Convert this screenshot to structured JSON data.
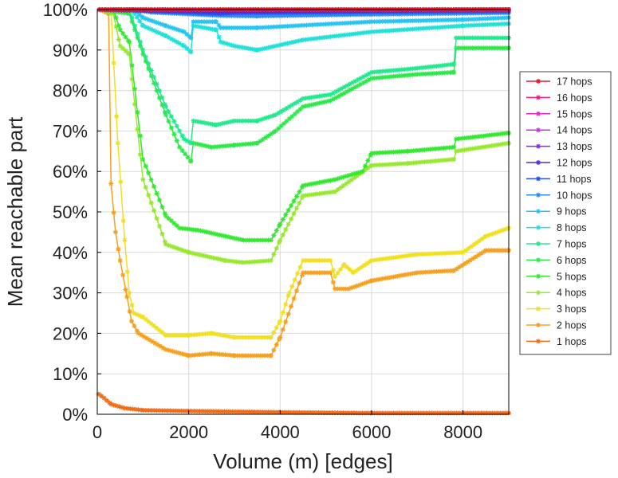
{
  "chart_data": {
    "type": "line",
    "title": "",
    "xlabel": "Volume (m) [edges]",
    "ylabel": "Mean reachable part",
    "xlim": [
      0,
      9000
    ],
    "ylim": [
      0,
      100
    ],
    "x_ticks": [
      "0",
      "2000",
      "4000",
      "6000",
      "8000"
    ],
    "y_ticks": [
      "0%",
      "10%",
      "20%",
      "30%",
      "40%",
      "50%",
      "60%",
      "70%",
      "80%",
      "90%",
      "100%"
    ],
    "grid": true,
    "legend_position": "right",
    "series": [
      {
        "name": "17 hops",
        "color": "#e8182e",
        "points": [
          [
            50,
            100
          ],
          [
            9000,
            100
          ]
        ]
      },
      {
        "name": "16 hops",
        "color": "#ee1c7a",
        "points": [
          [
            50,
            100
          ],
          [
            9000,
            100
          ]
        ]
      },
      {
        "name": "15 hops",
        "color": "#e825c0",
        "points": [
          [
            50,
            100
          ],
          [
            9000,
            100
          ]
        ]
      },
      {
        "name": "14 hops",
        "color": "#cf2ee8",
        "points": [
          [
            50,
            100
          ],
          [
            9000,
            100
          ]
        ]
      },
      {
        "name": "13 hops",
        "color": "#8c28e8",
        "points": [
          [
            50,
            100
          ],
          [
            9000,
            100
          ]
        ]
      },
      {
        "name": "12 hops",
        "color": "#4a2ce8",
        "points": [
          [
            50,
            100
          ],
          [
            3000,
            99.5
          ],
          [
            9000,
            100
          ]
        ]
      },
      {
        "name": "11 hops",
        "color": "#2450ee",
        "points": [
          [
            50,
            100
          ],
          [
            1500,
            99.5
          ],
          [
            2700,
            99
          ],
          [
            3000,
            99.2
          ],
          [
            6000,
            99.4
          ],
          [
            9000,
            99.6
          ]
        ]
      },
      {
        "name": "10 hops",
        "color": "#2a8cf0",
        "points": [
          [
            50,
            100
          ],
          [
            800,
            100
          ],
          [
            1200,
            99.3
          ],
          [
            2700,
            98.5
          ],
          [
            3500,
            98.4
          ],
          [
            6000,
            98.8
          ],
          [
            9000,
            99.2
          ]
        ]
      },
      {
        "name": "9 hops",
        "color": "#26c4f2",
        "points": [
          [
            50,
            100
          ],
          [
            800,
            100
          ],
          [
            1000,
            98
          ],
          [
            1500,
            96
          ],
          [
            1900,
            94.5
          ],
          [
            2050,
            93
          ],
          [
            2100,
            97
          ],
          [
            2600,
            97
          ],
          [
            2700,
            95.5
          ],
          [
            3500,
            95.5
          ],
          [
            6000,
            97
          ],
          [
            8000,
            97.5
          ],
          [
            9000,
            98
          ]
        ]
      },
      {
        "name": "8 hops",
        "color": "#20e0d8",
        "points": [
          [
            50,
            100
          ],
          [
            750,
            100
          ],
          [
            1000,
            96
          ],
          [
            1500,
            93.5
          ],
          [
            1900,
            91
          ],
          [
            2050,
            89.5
          ],
          [
            2100,
            96
          ],
          [
            2600,
            95
          ],
          [
            2700,
            92
          ],
          [
            3000,
            91
          ],
          [
            3500,
            90
          ],
          [
            4500,
            92.5
          ],
          [
            6000,
            94.5
          ],
          [
            8000,
            96
          ],
          [
            9000,
            96.5
          ]
        ]
      },
      {
        "name": "7 hops",
        "color": "#22e88e",
        "points": [
          [
            50,
            100
          ],
          [
            700,
            100
          ],
          [
            1000,
            90
          ],
          [
            1500,
            76
          ],
          [
            1900,
            68
          ],
          [
            2050,
            67
          ],
          [
            2100,
            72.5
          ],
          [
            2600,
            71.5
          ],
          [
            3000,
            72.5
          ],
          [
            3500,
            72.5
          ],
          [
            3900,
            74
          ],
          [
            4500,
            78
          ],
          [
            5100,
            79
          ],
          [
            6000,
            84.5
          ],
          [
            7000,
            85.5
          ],
          [
            7800,
            86.5
          ],
          [
            7850,
            93
          ],
          [
            9000,
            93
          ]
        ]
      },
      {
        "name": "6 hops",
        "color": "#2ee84a",
        "points": [
          [
            50,
            100
          ],
          [
            700,
            99
          ],
          [
            1000,
            89
          ],
          [
            1500,
            74
          ],
          [
            1800,
            66
          ],
          [
            2050,
            62.5
          ],
          [
            2100,
            67
          ],
          [
            2500,
            66
          ],
          [
            3000,
            66.5
          ],
          [
            3500,
            67
          ],
          [
            3900,
            70
          ],
          [
            4500,
            76
          ],
          [
            5100,
            77.5
          ],
          [
            6000,
            83
          ],
          [
            7000,
            84
          ],
          [
            7800,
            84.5
          ],
          [
            7850,
            90.5
          ],
          [
            9000,
            90.5
          ]
        ]
      },
      {
        "name": "5 hops",
        "color": "#34e830",
        "points": [
          [
            50,
            100
          ],
          [
            350,
            100
          ],
          [
            500,
            95
          ],
          [
            700,
            92
          ],
          [
            1000,
            63
          ],
          [
            1500,
            49
          ],
          [
            1800,
            46
          ],
          [
            2200,
            45.5
          ],
          [
            2800,
            44
          ],
          [
            3200,
            43
          ],
          [
            3800,
            43
          ],
          [
            4000,
            47
          ],
          [
            4500,
            56.5
          ],
          [
            5200,
            58
          ],
          [
            5800,
            60
          ],
          [
            6000,
            64.5
          ],
          [
            6800,
            65
          ],
          [
            7800,
            66
          ],
          [
            7850,
            68
          ],
          [
            9000,
            69.5
          ]
        ]
      },
      {
        "name": "4 hops",
        "color": "#98e832",
        "points": [
          [
            50,
            100
          ],
          [
            350,
            99
          ],
          [
            500,
            91
          ],
          [
            700,
            89
          ],
          [
            1000,
            58
          ],
          [
            1500,
            42
          ],
          [
            2000,
            40
          ],
          [
            2800,
            38
          ],
          [
            3200,
            37.5
          ],
          [
            3800,
            38
          ],
          [
            4000,
            43
          ],
          [
            4500,
            54
          ],
          [
            5200,
            55
          ],
          [
            6000,
            61.5
          ],
          [
            6800,
            62
          ],
          [
            7800,
            63
          ],
          [
            7850,
            65
          ],
          [
            9000,
            67
          ]
        ]
      },
      {
        "name": "3 hops",
        "color": "#f0e020",
        "points": [
          [
            50,
            100
          ],
          [
            300,
            100
          ],
          [
            450,
            67
          ],
          [
            600,
            43
          ],
          [
            700,
            30
          ],
          [
            800,
            25
          ],
          [
            1000,
            24
          ],
          [
            1500,
            19.5
          ],
          [
            2000,
            19.5
          ],
          [
            2500,
            20
          ],
          [
            3000,
            19
          ],
          [
            3800,
            19
          ],
          [
            4000,
            23
          ],
          [
            4200,
            30
          ],
          [
            4500,
            38
          ],
          [
            5100,
            38
          ],
          [
            5200,
            34
          ],
          [
            5400,
            37
          ],
          [
            5600,
            35
          ],
          [
            6000,
            38
          ],
          [
            7000,
            39.5
          ],
          [
            8000,
            40
          ],
          [
            8500,
            44
          ],
          [
            9000,
            46
          ]
        ]
      },
      {
        "name": "2 hops",
        "color": "#f4a020",
        "points": [
          [
            50,
            100
          ],
          [
            250,
            99
          ],
          [
            300,
            57
          ],
          [
            400,
            45
          ],
          [
            500,
            38
          ],
          [
            650,
            29
          ],
          [
            750,
            23
          ],
          [
            900,
            20
          ],
          [
            1500,
            16
          ],
          [
            2000,
            14.5
          ],
          [
            2500,
            15
          ],
          [
            3000,
            14.5
          ],
          [
            3800,
            14.5
          ],
          [
            4000,
            19
          ],
          [
            4500,
            35
          ],
          [
            5100,
            35
          ],
          [
            5200,
            31
          ],
          [
            5500,
            31
          ],
          [
            6000,
            33
          ],
          [
            7000,
            35
          ],
          [
            7800,
            35.5
          ],
          [
            8500,
            40.5
          ],
          [
            9000,
            40.5
          ]
        ]
      },
      {
        "name": "1 hops",
        "color": "#f06c18",
        "points": [
          [
            30,
            5
          ],
          [
            150,
            4
          ],
          [
            300,
            2.5
          ],
          [
            600,
            1.5
          ],
          [
            1000,
            1
          ],
          [
            2000,
            0.8
          ],
          [
            4000,
            0.5
          ],
          [
            6000,
            0.3
          ],
          [
            9000,
            0.3
          ]
        ]
      }
    ]
  }
}
